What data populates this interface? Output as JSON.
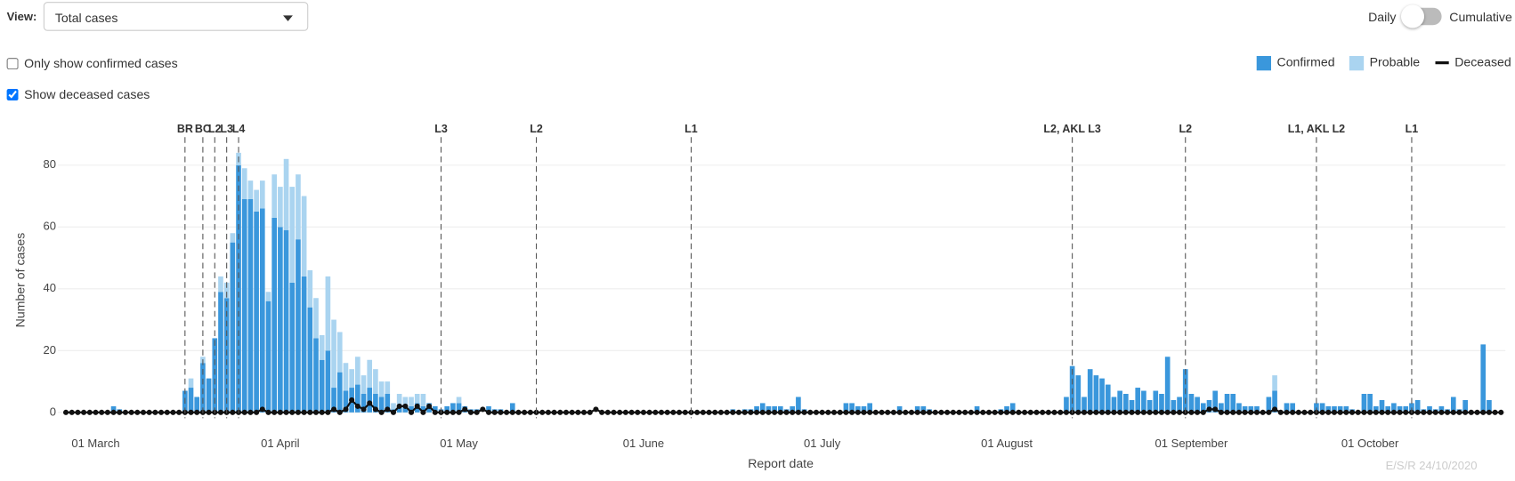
{
  "view_label": "View:",
  "dropdown": "Total cases",
  "toggle": {
    "left": "Daily",
    "right": "Cumulative",
    "right_on": false
  },
  "checkboxes": [
    {
      "label": "Only show confirmed cases",
      "checked": false
    },
    {
      "label": "Show deceased cases",
      "checked": true
    }
  ],
  "footer": "E/S/R 24/10/2020",
  "chart_data": {
    "type": "bar",
    "stacked": true,
    "x_label": "Report date",
    "y_label": "Number of cases",
    "ylim": [
      -2,
      90
    ],
    "yticks": [
      0,
      20,
      40,
      60,
      80
    ],
    "grid": true,
    "legend": "top-right",
    "categories": [
      null,
      null,
      null,
      null,
      null,
      "01 March",
      null,
      null,
      null,
      null,
      null,
      null,
      null,
      null,
      null,
      null,
      null,
      null,
      null,
      null,
      null,
      null,
      null,
      null,
      null,
      null,
      null,
      null,
      null,
      null,
      null,
      null,
      null,
      null,
      null,
      null,
      "01 April",
      null,
      null,
      null,
      null,
      null,
      null,
      null,
      null,
      null,
      null,
      null,
      null,
      null,
      null,
      null,
      null,
      null,
      null,
      null,
      null,
      null,
      null,
      null,
      null,
      null,
      null,
      null,
      null,
      null,
      "01 May",
      null,
      null,
      null,
      null,
      null,
      null,
      null,
      null,
      null,
      null,
      null,
      null,
      null,
      null,
      null,
      null,
      null,
      null,
      null,
      null,
      null,
      null,
      null,
      null,
      null,
      null,
      null,
      null,
      null,
      null,
      "01 June",
      null,
      null,
      null,
      null,
      null,
      null,
      null,
      null,
      null,
      null,
      null,
      null,
      null,
      null,
      null,
      null,
      null,
      null,
      null,
      null,
      null,
      null,
      null,
      null,
      null,
      null,
      null,
      null,
      null,
      "01 July",
      null,
      null,
      null,
      null,
      null,
      null,
      null,
      null,
      null,
      null,
      null,
      null,
      null,
      null,
      null,
      null,
      null,
      null,
      null,
      null,
      null,
      null,
      null,
      null,
      null,
      null,
      null,
      null,
      null,
      null,
      "01 August",
      null,
      null,
      null,
      null,
      null,
      null,
      null,
      null,
      null,
      null,
      null,
      null,
      null,
      null,
      null,
      null,
      null,
      null,
      null,
      null,
      null,
      null,
      null,
      null,
      null,
      null,
      null,
      null,
      null,
      null,
      "01 September",
      null,
      null,
      null,
      null,
      null,
      null,
      null,
      null,
      null,
      null,
      null,
      null,
      null,
      null,
      null,
      null,
      null,
      null,
      null,
      null,
      null,
      null,
      null,
      null,
      null,
      null,
      null,
      null,
      null,
      "01 October",
      null,
      null,
      null,
      null,
      null,
      null,
      null,
      null,
      null,
      null,
      null,
      null,
      null,
      null,
      null,
      null,
      null,
      null,
      null,
      null,
      null,
      null
    ],
    "series": [
      {
        "name": "Confirmed",
        "type": "bar",
        "color": "#3a97dc",
        "values": [
          0,
          0,
          0,
          0,
          0,
          0,
          0,
          0,
          2,
          1,
          0,
          0,
          0,
          0,
          0,
          0,
          0,
          0,
          0,
          0,
          7,
          8,
          5,
          16,
          11,
          24,
          39,
          37,
          55,
          80,
          69,
          69,
          65,
          66,
          36,
          63,
          60,
          59,
          42,
          56,
          44,
          34,
          24,
          17,
          20,
          8,
          13,
          7,
          8,
          9,
          6,
          8,
          6,
          5,
          6,
          1,
          2,
          2,
          2,
          3,
          2,
          3,
          2,
          1,
          2,
          3,
          3,
          2,
          1,
          1,
          0,
          2,
          1,
          1,
          0,
          3,
          0,
          0,
          0,
          0,
          0,
          0,
          0,
          0,
          0,
          0,
          0,
          0,
          0,
          0,
          0,
          0,
          0,
          0,
          0,
          0,
          0,
          0,
          0,
          0,
          0,
          0,
          0,
          0,
          0,
          0,
          0,
          0,
          0,
          0,
          0,
          0,
          1,
          0,
          1,
          1,
          2,
          3,
          2,
          2,
          2,
          1,
          2,
          5,
          1,
          0,
          0,
          0,
          0,
          0,
          0,
          3,
          3,
          2,
          2,
          3,
          0,
          0,
          0,
          0,
          2,
          0,
          0,
          2,
          2,
          1,
          0,
          0,
          0,
          0,
          0,
          0,
          0,
          2,
          0,
          0,
          0,
          1,
          2,
          3,
          0,
          0,
          0,
          0,
          0,
          0,
          0,
          0,
          5,
          15,
          12,
          5,
          14,
          12,
          11,
          9,
          5,
          7,
          6,
          4,
          8,
          7,
          4,
          7,
          6,
          18,
          4,
          5,
          14,
          6,
          5,
          3,
          4,
          7,
          3,
          6,
          6,
          3,
          2,
          2,
          2,
          0,
          5,
          7,
          0,
          3,
          3,
          0,
          0,
          0,
          3,
          3,
          2,
          2,
          2,
          2,
          1,
          0,
          6,
          6,
          2,
          4,
          2,
          3,
          2,
          2,
          3,
          4,
          1,
          2,
          1,
          2,
          1,
          5,
          1,
          4,
          0,
          0,
          22,
          4,
          0,
          0
        ]
      },
      {
        "name": "Probable",
        "type": "bar",
        "color": "#aad4f0",
        "values": [
          0,
          0,
          0,
          0,
          0,
          0,
          0,
          0,
          0,
          0,
          0,
          0,
          0,
          0,
          0,
          0,
          0,
          0,
          0,
          0,
          0,
          3,
          0,
          2,
          0,
          0,
          5,
          5,
          3,
          4,
          10,
          6,
          7,
          9,
          3,
          14,
          13,
          23,
          31,
          21,
          26,
          12,
          13,
          8,
          24,
          22,
          13,
          9,
          6,
          9,
          6,
          9,
          8,
          5,
          4,
          2,
          4,
          3,
          3,
          3,
          4,
          0,
          0,
          0,
          0,
          0,
          2,
          0,
          0,
          0,
          0,
          0,
          0,
          0,
          0,
          0,
          0,
          0,
          0,
          0,
          0,
          0,
          0,
          0,
          0,
          0,
          0,
          0,
          0,
          0,
          0,
          0,
          0,
          0,
          0,
          0,
          0,
          0,
          0,
          0,
          0,
          0,
          0,
          0,
          0,
          0,
          0,
          0,
          0,
          0,
          0,
          0,
          0,
          0,
          0,
          0,
          0,
          0,
          0,
          0,
          0,
          0,
          0,
          0,
          0,
          0,
          0,
          0,
          0,
          0,
          0,
          0,
          0,
          0,
          0,
          0,
          0,
          0,
          0,
          0,
          0,
          0,
          0,
          0,
          0,
          0,
          0,
          0,
          0,
          0,
          0,
          0,
          0,
          0,
          0,
          0,
          0,
          0,
          0,
          0,
          0,
          0,
          0,
          0,
          0,
          0,
          0,
          0,
          0,
          0,
          0,
          0,
          0,
          0,
          0,
          0,
          0,
          0,
          0,
          0,
          0,
          0,
          0,
          0,
          0,
          0,
          0,
          0,
          0,
          0,
          0,
          0,
          0,
          0,
          0,
          0,
          0,
          0,
          0,
          0,
          0,
          0,
          0,
          5,
          0,
          0,
          0,
          0,
          0,
          0,
          0,
          0,
          0,
          0,
          0,
          0,
          0,
          0,
          0,
          0,
          0,
          0,
          0,
          0,
          0,
          0,
          0,
          0,
          0,
          0,
          0,
          0,
          0,
          0,
          0,
          0,
          0,
          0,
          0,
          0,
          0,
          0
        ]
      },
      {
        "name": "Deceased",
        "type": "line",
        "color": "#111111",
        "values": [
          0,
          0,
          0,
          0,
          0,
          0,
          0,
          0,
          0,
          0,
          0,
          0,
          0,
          0,
          0,
          0,
          0,
          0,
          0,
          0,
          0,
          0,
          0,
          0,
          0,
          0,
          0,
          0,
          0,
          0,
          0,
          0,
          0,
          1,
          0,
          0,
          0,
          0,
          0,
          0,
          0,
          0,
          0,
          0,
          0,
          1,
          0,
          1,
          4,
          2,
          1,
          3,
          1,
          0,
          1,
          0,
          2,
          2,
          0,
          2,
          0,
          2,
          0,
          0,
          0,
          0,
          0,
          1,
          0,
          0,
          1,
          0,
          0,
          0,
          0,
          0,
          0,
          0,
          0,
          0,
          0,
          0,
          0,
          0,
          0,
          0,
          0,
          0,
          0,
          1,
          0,
          0,
          0,
          0,
          0,
          0,
          0,
          0,
          0,
          0,
          0,
          0,
          0,
          0,
          0,
          0,
          0,
          0,
          0,
          0,
          0,
          0,
          0,
          0,
          0,
          0,
          0,
          0,
          0,
          0,
          0,
          0,
          0,
          0,
          0,
          0,
          0,
          0,
          0,
          0,
          0,
          0,
          0,
          0,
          0,
          0,
          0,
          0,
          0,
          0,
          0,
          0,
          0,
          0,
          0,
          0,
          0,
          0,
          0,
          0,
          0,
          0,
          0,
          0,
          0,
          0,
          0,
          0,
          0,
          0,
          0,
          0,
          0,
          0,
          0,
          0,
          0,
          0,
          0,
          0,
          0,
          0,
          0,
          0,
          0,
          0,
          0,
          0,
          0,
          0,
          0,
          0,
          0,
          0,
          0,
          0,
          0,
          0,
          0,
          0,
          0,
          0,
          1,
          1,
          0,
          0,
          0,
          0,
          0,
          0,
          0,
          0,
          0,
          1,
          0,
          0,
          0,
          0,
          0,
          0,
          0,
          0,
          0,
          0,
          0,
          0,
          0,
          0,
          0,
          0,
          0,
          0,
          0,
          0,
          0,
          0,
          0,
          0,
          0,
          0,
          0,
          0,
          0,
          0,
          0,
          0,
          0,
          0,
          0,
          0,
          0,
          0
        ]
      }
    ],
    "annotations": [
      {
        "label": "BR",
        "x": 20
      },
      {
        "label": "BC",
        "x": 23
      },
      {
        "label": "L2",
        "x": 25
      },
      {
        "label": "L3",
        "x": 27
      },
      {
        "label": "L4",
        "x": 29
      },
      {
        "label": "L3",
        "x": 63
      },
      {
        "label": "L2",
        "x": 79
      },
      {
        "label": "L1",
        "x": 105
      },
      {
        "label": "L2, AKL L3",
        "x": 169
      },
      {
        "label": "L2",
        "x": 188
      },
      {
        "label": "L1, AKL L2",
        "x": 210
      },
      {
        "label": "L1",
        "x": 226
      }
    ]
  }
}
